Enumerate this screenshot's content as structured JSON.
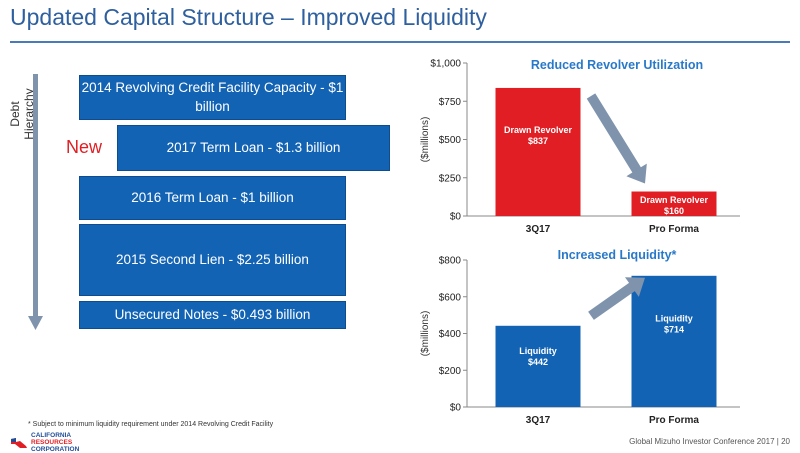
{
  "page": {
    "title": "Updated Capital Structure – Improved Liquidity",
    "axis_label": "Debt Hierarchy",
    "new_label": "New",
    "footnote": "* Subject to minimum liquidity requirement under 2014 Revolving Credit Facility",
    "footer": "Global Mizuho Investor Conference 2017  |  20",
    "logo_text": [
      "CALIFORNIA",
      "RESOURCES",
      "CORPORATION"
    ]
  },
  "colors": {
    "blue": "#1363b5",
    "red": "#e01e24",
    "title": "#2e5f9e"
  },
  "debt_items": [
    "2014 Revolving Credit Facility Capacity - $1 billion",
    "2017 Term Loan - $1.3 billion",
    "2016 Term Loan - $1 billion",
    "2015 Second Lien - $2.25 billion",
    "Unsecured Notes - $0.493 billion"
  ],
  "chart_data": [
    {
      "type": "bar",
      "title": "Reduced Revolver Utilization",
      "ylabel": "($millions)",
      "categories": [
        "3Q17",
        "Pro Forma"
      ],
      "values": [
        837,
        160
      ],
      "labels": [
        [
          "Drawn Revolver",
          "$837"
        ],
        [
          "Drawn Revolver",
          "$160"
        ]
      ],
      "ylim": [
        0,
        1000
      ],
      "yticks": [
        "$0",
        "$250",
        "$500",
        "$750",
        "$1,000"
      ],
      "ytick_values": [
        0,
        250,
        500,
        750,
        1000
      ],
      "color": "#e01e24",
      "arrow": "down"
    },
    {
      "type": "bar",
      "title": "Increased Liquidity*",
      "ylabel": "($millions)",
      "categories": [
        "3Q17",
        "Pro Forma"
      ],
      "values": [
        442,
        714
      ],
      "labels": [
        [
          "Liquidity",
          "$442"
        ],
        [
          "Liquidity",
          "$714"
        ]
      ],
      "ylim": [
        0,
        800
      ],
      "yticks": [
        "$0",
        "$200",
        "$400",
        "$600",
        "$800"
      ],
      "ytick_values": [
        0,
        200,
        400,
        600,
        800
      ],
      "color": "#1363b5",
      "arrow": "up"
    }
  ]
}
